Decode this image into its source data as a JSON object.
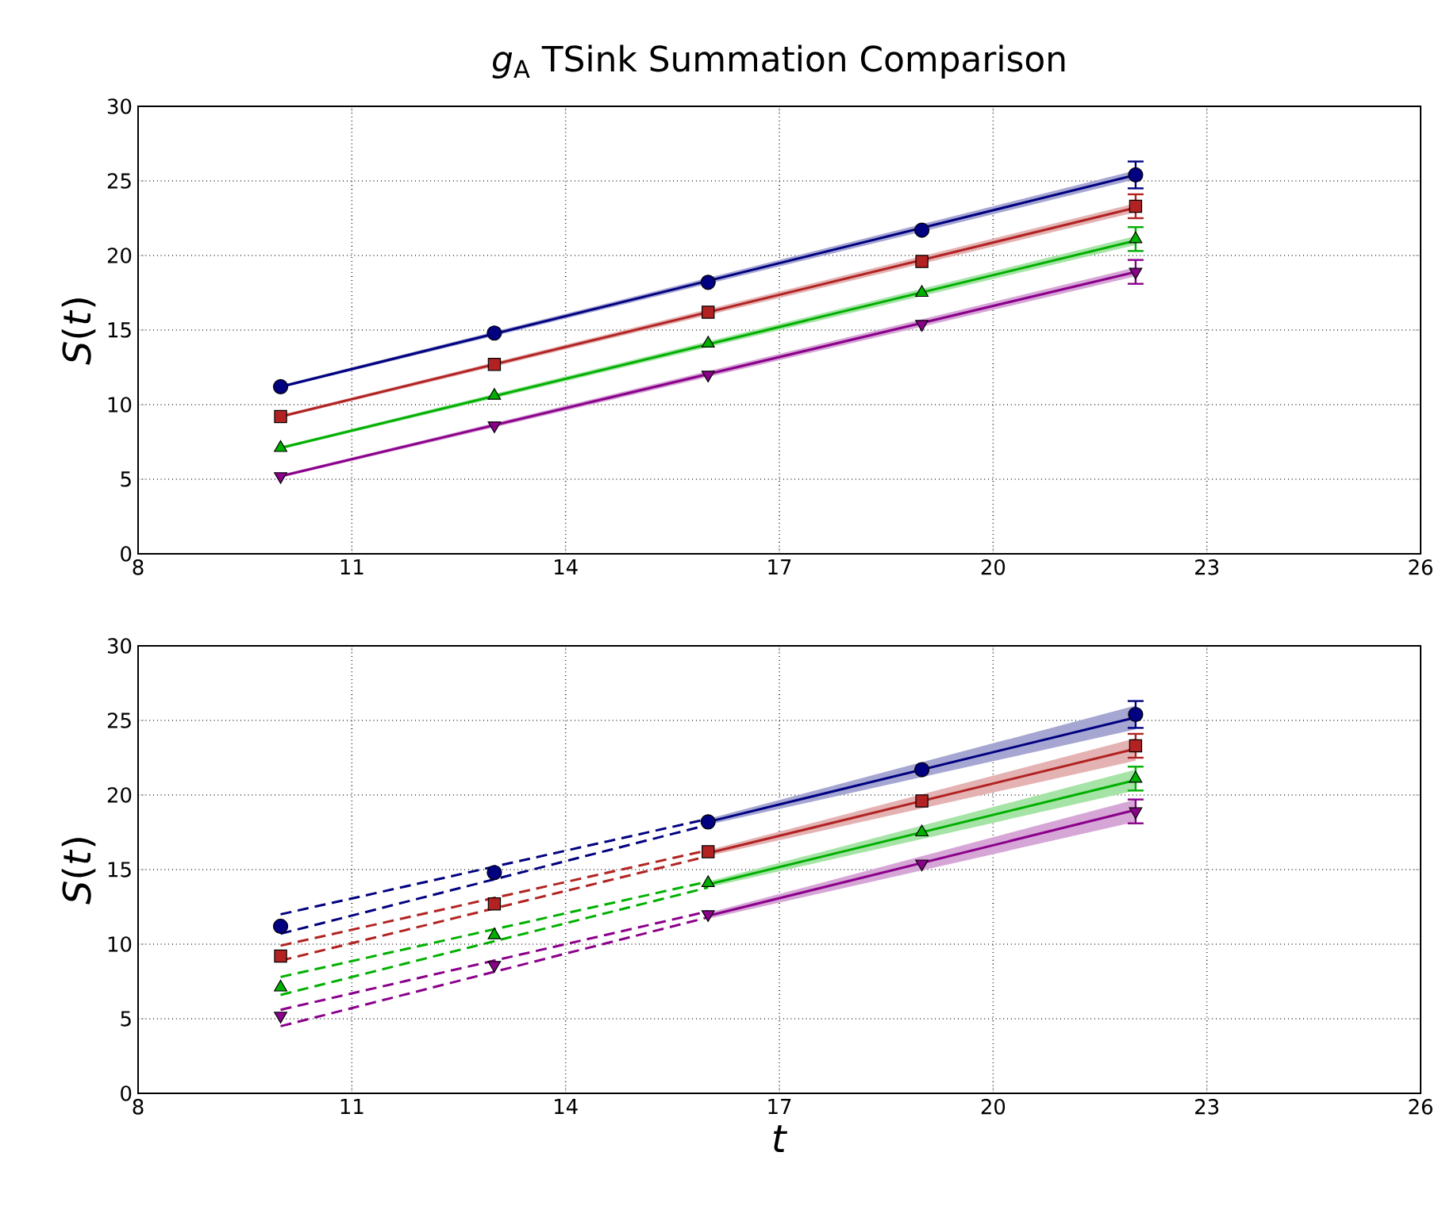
{
  "chart_data": [
    {
      "type": "scatter",
      "title": "*g*$_{A}$ TSink Summation Comparison",
      "ylabel": "*S*(*t*)",
      "xlim": [
        8,
        26
      ],
      "ylim": [
        0,
        30
      ],
      "xticks": [
        8,
        11,
        14,
        17,
        20,
        23,
        26
      ],
      "yticks": [
        0,
        5,
        10,
        15,
        20,
        25,
        30
      ],
      "grid": true,
      "series": [
        {
          "type": "line",
          "color": "#000080",
          "marker": "none",
          "line_style": "solid",
          "x": [
            10,
            22
          ],
          "values": [
            11.2,
            25.4
          ],
          "lower": [
            11.1,
            25.1
          ],
          "upper": [
            11.3,
            25.7
          ]
        },
        {
          "type": "line",
          "color": "#b22222",
          "marker": "none",
          "line_style": "solid",
          "x": [
            10,
            22
          ],
          "values": [
            9.2,
            23.2
          ],
          "lower": [
            9.1,
            22.9
          ],
          "upper": [
            9.3,
            23.5
          ]
        },
        {
          "type": "line",
          "color": "#00b000",
          "marker": "none",
          "line_style": "solid",
          "x": [
            10,
            22
          ],
          "values": [
            7.1,
            21.0
          ],
          "lower": [
            7.0,
            20.7
          ],
          "upper": [
            7.2,
            21.3
          ]
        },
        {
          "type": "line",
          "color": "#8b008b",
          "marker": "none",
          "line_style": "solid",
          "x": [
            10,
            22
          ],
          "values": [
            5.2,
            18.9
          ],
          "lower": [
            5.1,
            18.6
          ],
          "upper": [
            5.3,
            19.2
          ]
        },
        {
          "type": "scatter",
          "color": "#000080",
          "marker": "circle",
          "x": [
            10,
            13,
            16,
            19,
            22
          ],
          "values": [
            11.2,
            14.8,
            18.2,
            21.7,
            25.4
          ],
          "errors": [
            null,
            null,
            null,
            null,
            0.9
          ]
        },
        {
          "type": "scatter",
          "color": "#b22222",
          "marker": "square",
          "x": [
            10,
            13,
            16,
            19,
            22
          ],
          "values": [
            9.2,
            12.7,
            16.2,
            19.6,
            23.3
          ],
          "errors": [
            null,
            null,
            null,
            null,
            0.8
          ]
        },
        {
          "type": "scatter",
          "color": "#00b000",
          "marker": "triangle",
          "x": [
            10,
            13,
            16,
            19,
            22
          ],
          "values": [
            7.1,
            10.6,
            14.1,
            17.5,
            21.1
          ],
          "errors": [
            null,
            null,
            null,
            null,
            0.8
          ]
        },
        {
          "type": "scatter",
          "color": "#8b008b",
          "marker": "triangle_down",
          "x": [
            10,
            13,
            16,
            19,
            22
          ],
          "values": [
            5.2,
            8.6,
            12.0,
            15.4,
            18.9
          ],
          "errors": [
            null,
            null,
            null,
            null,
            0.8
          ]
        }
      ]
    },
    {
      "type": "scatter",
      "xlabel": "*t*",
      "ylabel": "*S*(*t*)",
      "xlim": [
        8,
        26
      ],
      "ylim": [
        0,
        30
      ],
      "xticks": [
        8,
        11,
        14,
        17,
        20,
        23,
        26
      ],
      "yticks": [
        0,
        5,
        10,
        15,
        20,
        25,
        30
      ],
      "grid": true,
      "series": [
        {
          "type": "line",
          "color": "#000080",
          "marker": "none",
          "line_style": "dashed",
          "x": [
            10,
            16
          ],
          "values": [
            12.0,
            18.4
          ]
        },
        {
          "type": "line",
          "color": "#000080",
          "marker": "none",
          "line_style": "dashed",
          "x": [
            10,
            16
          ],
          "values": [
            10.7,
            18.0
          ]
        },
        {
          "type": "line",
          "color": "#b22222",
          "marker": "none",
          "line_style": "dashed",
          "x": [
            10,
            16
          ],
          "values": [
            9.9,
            16.3
          ]
        },
        {
          "type": "line",
          "color": "#b22222",
          "marker": "none",
          "line_style": "dashed",
          "x": [
            10,
            16
          ],
          "values": [
            8.9,
            15.9
          ]
        },
        {
          "type": "line",
          "color": "#00b000",
          "marker": "none",
          "line_style": "dashed",
          "x": [
            10,
            16
          ],
          "values": [
            7.8,
            14.2
          ]
        },
        {
          "type": "line",
          "color": "#00b000",
          "marker": "none",
          "line_style": "dashed",
          "x": [
            10,
            16
          ],
          "values": [
            6.6,
            13.8
          ]
        },
        {
          "type": "line",
          "color": "#8b008b",
          "marker": "none",
          "line_style": "dashed",
          "x": [
            10,
            16
          ],
          "values": [
            5.6,
            12.2
          ]
        },
        {
          "type": "line",
          "color": "#8b008b",
          "marker": "none",
          "line_style": "dashed",
          "x": [
            10,
            16
          ],
          "values": [
            4.5,
            11.8
          ]
        },
        {
          "type": "line",
          "color": "#000080",
          "marker": "none",
          "line_style": "solid",
          "x": [
            16,
            22
          ],
          "values": [
            18.2,
            25.2
          ],
          "lower": [
            18.0,
            24.4
          ],
          "upper": [
            18.4,
            26.0
          ]
        },
        {
          "type": "line",
          "color": "#b22222",
          "marker": "none",
          "line_style": "solid",
          "x": [
            16,
            22
          ],
          "values": [
            16.1,
            23.1
          ],
          "lower": [
            15.9,
            22.3
          ],
          "upper": [
            16.3,
            23.8
          ]
        },
        {
          "type": "line",
          "color": "#00b000",
          "marker": "none",
          "line_style": "solid",
          "x": [
            16,
            22
          ],
          "values": [
            14.0,
            21.0
          ],
          "lower": [
            13.8,
            20.3
          ],
          "upper": [
            14.2,
            21.7
          ]
        },
        {
          "type": "line",
          "color": "#8b008b",
          "marker": "none",
          "line_style": "solid",
          "x": [
            16,
            22
          ],
          "values": [
            11.9,
            19.0
          ],
          "lower": [
            11.7,
            18.2
          ],
          "upper": [
            12.1,
            19.7
          ]
        },
        {
          "type": "scatter",
          "color": "#000080",
          "marker": "circle",
          "x": [
            10,
            13,
            16,
            19,
            22
          ],
          "values": [
            11.2,
            14.8,
            18.2,
            21.7,
            25.4
          ],
          "errors": [
            null,
            null,
            null,
            null,
            0.9
          ]
        },
        {
          "type": "scatter",
          "color": "#b22222",
          "marker": "square",
          "x": [
            10,
            13,
            16,
            19,
            22
          ],
          "values": [
            9.2,
            12.7,
            16.2,
            19.6,
            23.3
          ],
          "errors": [
            null,
            null,
            null,
            null,
            0.8
          ]
        },
        {
          "type": "scatter",
          "color": "#00b000",
          "marker": "triangle",
          "x": [
            10,
            13,
            16,
            19,
            22
          ],
          "values": [
            7.1,
            10.6,
            14.1,
            17.5,
            21.1
          ],
          "errors": [
            null,
            null,
            null,
            null,
            0.8
          ]
        },
        {
          "type": "scatter",
          "color": "#8b008b",
          "marker": "triangle_down",
          "x": [
            10,
            13,
            16,
            19,
            22
          ],
          "values": [
            5.2,
            8.6,
            12.0,
            15.4,
            18.9
          ],
          "errors": [
            null,
            null,
            null,
            null,
            0.8
          ]
        }
      ]
    }
  ]
}
